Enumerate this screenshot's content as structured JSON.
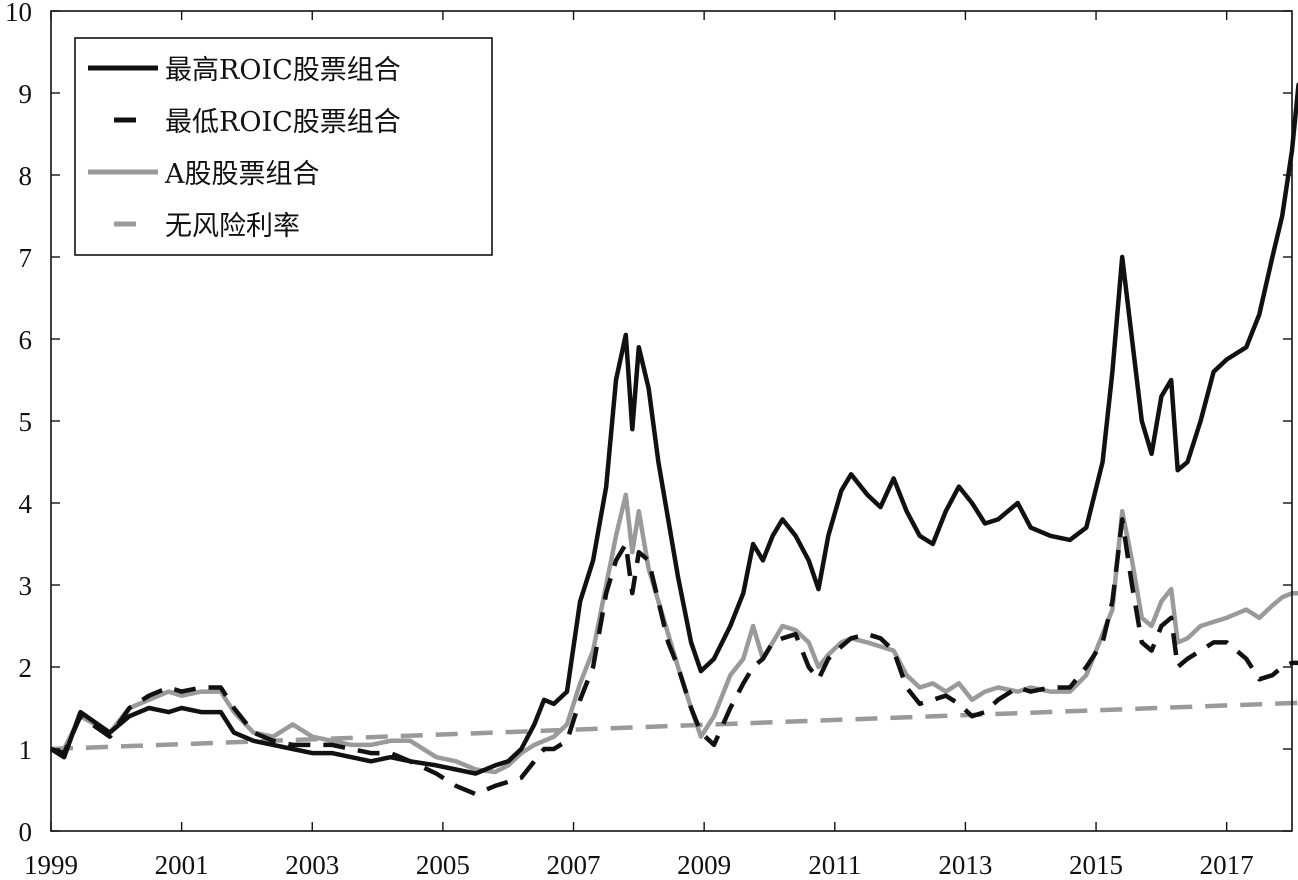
{
  "chart_data": {
    "type": "line",
    "title": "",
    "xlabel": "",
    "ylabel": "",
    "xlim": [
      1999.0,
      2018.0
    ],
    "ylim": [
      0,
      10
    ],
    "x_ticks": [
      1999,
      2001,
      2003,
      2005,
      2007,
      2009,
      2011,
      2013,
      2015,
      2017
    ],
    "y_ticks": [
      0,
      1,
      2,
      3,
      4,
      5,
      6,
      7,
      8,
      9,
      10
    ],
    "grid": false,
    "legend_position": "top-left",
    "series": [
      {
        "name": "最高ROIC股票组合",
        "color": "#111111",
        "style": "solid",
        "points": [
          [
            1999.0,
            1.0
          ],
          [
            1999.2,
            0.9
          ],
          [
            1999.45,
            1.45
          ],
          [
            1999.9,
            1.2
          ],
          [
            2000.2,
            1.4
          ],
          [
            2000.5,
            1.5
          ],
          [
            2000.8,
            1.45
          ],
          [
            2001.0,
            1.5
          ],
          [
            2001.3,
            1.45
          ],
          [
            2001.6,
            1.45
          ],
          [
            2001.8,
            1.2
          ],
          [
            2002.1,
            1.1
          ],
          [
            2002.4,
            1.05
          ],
          [
            2002.7,
            1.0
          ],
          [
            2003.0,
            0.95
          ],
          [
            2003.3,
            0.95
          ],
          [
            2003.6,
            0.9
          ],
          [
            2003.9,
            0.85
          ],
          [
            2004.2,
            0.9
          ],
          [
            2004.5,
            0.85
          ],
          [
            2004.9,
            0.8
          ],
          [
            2005.2,
            0.75
          ],
          [
            2005.5,
            0.7
          ],
          [
            2005.8,
            0.8
          ],
          [
            2006.0,
            0.85
          ],
          [
            2006.2,
            1.0
          ],
          [
            2006.4,
            1.3
          ],
          [
            2006.55,
            1.6
          ],
          [
            2006.7,
            1.55
          ],
          [
            2006.9,
            1.7
          ],
          [
            2007.1,
            2.8
          ],
          [
            2007.3,
            3.3
          ],
          [
            2007.5,
            4.2
          ],
          [
            2007.65,
            5.5
          ],
          [
            2007.8,
            6.05
          ],
          [
            2007.9,
            4.9
          ],
          [
            2008.0,
            5.9
          ],
          [
            2008.15,
            5.4
          ],
          [
            2008.3,
            4.5
          ],
          [
            2008.45,
            3.8
          ],
          [
            2008.6,
            3.1
          ],
          [
            2008.8,
            2.3
          ],
          [
            2008.95,
            1.95
          ],
          [
            2009.15,
            2.1
          ],
          [
            2009.4,
            2.5
          ],
          [
            2009.6,
            2.9
          ],
          [
            2009.75,
            3.5
          ],
          [
            2009.9,
            3.3
          ],
          [
            2010.05,
            3.6
          ],
          [
            2010.2,
            3.8
          ],
          [
            2010.4,
            3.6
          ],
          [
            2010.6,
            3.3
          ],
          [
            2010.75,
            2.95
          ],
          [
            2010.9,
            3.6
          ],
          [
            2011.1,
            4.15
          ],
          [
            2011.25,
            4.35
          ],
          [
            2011.5,
            4.1
          ],
          [
            2011.7,
            3.95
          ],
          [
            2011.9,
            4.3
          ],
          [
            2012.1,
            3.9
          ],
          [
            2012.3,
            3.6
          ],
          [
            2012.5,
            3.5
          ],
          [
            2012.7,
            3.9
          ],
          [
            2012.9,
            4.2
          ],
          [
            2013.1,
            4.0
          ],
          [
            2013.3,
            3.75
          ],
          [
            2013.5,
            3.8
          ],
          [
            2013.8,
            4.0
          ],
          [
            2014.0,
            3.7
          ],
          [
            2014.3,
            3.6
          ],
          [
            2014.6,
            3.55
          ],
          [
            2014.85,
            3.7
          ],
          [
            2015.1,
            4.5
          ],
          [
            2015.25,
            5.6
          ],
          [
            2015.4,
            7.0
          ],
          [
            2015.55,
            6.0
          ],
          [
            2015.7,
            5.0
          ],
          [
            2015.85,
            4.6
          ],
          [
            2016.0,
            5.3
          ],
          [
            2016.15,
            5.5
          ],
          [
            2016.25,
            4.4
          ],
          [
            2016.4,
            4.5
          ],
          [
            2016.6,
            5.0
          ],
          [
            2016.8,
            5.6
          ],
          [
            2017.0,
            5.75
          ],
          [
            2017.3,
            5.9
          ],
          [
            2017.5,
            6.3
          ],
          [
            2017.7,
            7.0
          ],
          [
            2017.85,
            7.5
          ],
          [
            2018.0,
            8.3
          ],
          [
            2018.1,
            9.1
          ],
          [
            2018.2,
            9.0
          ],
          [
            2018.3,
            9.85
          ]
        ]
      },
      {
        "name": "最低ROIC股票组合",
        "color": "#111111",
        "style": "dashed",
        "points": [
          [
            1999.0,
            1.0
          ],
          [
            1999.2,
            0.95
          ],
          [
            1999.45,
            1.4
          ],
          [
            1999.9,
            1.15
          ],
          [
            2000.2,
            1.5
          ],
          [
            2000.5,
            1.65
          ],
          [
            2000.8,
            1.75
          ],
          [
            2001.0,
            1.7
          ],
          [
            2001.3,
            1.75
          ],
          [
            2001.6,
            1.75
          ],
          [
            2001.8,
            1.5
          ],
          [
            2002.1,
            1.2
          ],
          [
            2002.4,
            1.1
          ],
          [
            2002.7,
            1.05
          ],
          [
            2003.0,
            1.05
          ],
          [
            2003.3,
            1.05
          ],
          [
            2003.6,
            1.0
          ],
          [
            2003.9,
            0.95
          ],
          [
            2004.2,
            0.95
          ],
          [
            2004.5,
            0.85
          ],
          [
            2004.9,
            0.7
          ],
          [
            2005.2,
            0.55
          ],
          [
            2005.5,
            0.45
          ],
          [
            2005.8,
            0.55
          ],
          [
            2006.0,
            0.6
          ],
          [
            2006.2,
            0.65
          ],
          [
            2006.4,
            0.85
          ],
          [
            2006.55,
            1.0
          ],
          [
            2006.7,
            1.0
          ],
          [
            2006.9,
            1.1
          ],
          [
            2007.1,
            1.6
          ],
          [
            2007.3,
            2.0
          ],
          [
            2007.5,
            2.9
          ],
          [
            2007.65,
            3.3
          ],
          [
            2007.8,
            3.5
          ],
          [
            2007.9,
            2.9
          ],
          [
            2008.0,
            3.4
          ],
          [
            2008.15,
            3.3
          ],
          [
            2008.3,
            2.8
          ],
          [
            2008.45,
            2.3
          ],
          [
            2008.6,
            2.0
          ],
          [
            2008.8,
            1.5
          ],
          [
            2008.95,
            1.2
          ],
          [
            2009.15,
            1.05
          ],
          [
            2009.4,
            1.5
          ],
          [
            2009.6,
            1.8
          ],
          [
            2009.75,
            2.0
          ],
          [
            2009.9,
            2.1
          ],
          [
            2010.05,
            2.3
          ],
          [
            2010.2,
            2.35
          ],
          [
            2010.4,
            2.4
          ],
          [
            2010.6,
            2.0
          ],
          [
            2010.75,
            1.85
          ],
          [
            2010.9,
            2.1
          ],
          [
            2011.1,
            2.25
          ],
          [
            2011.25,
            2.35
          ],
          [
            2011.5,
            2.4
          ],
          [
            2011.7,
            2.35
          ],
          [
            2011.9,
            2.2
          ],
          [
            2012.1,
            1.75
          ],
          [
            2012.3,
            1.55
          ],
          [
            2012.5,
            1.6
          ],
          [
            2012.7,
            1.65
          ],
          [
            2012.9,
            1.55
          ],
          [
            2013.1,
            1.4
          ],
          [
            2013.3,
            1.45
          ],
          [
            2013.5,
            1.6
          ],
          [
            2013.8,
            1.75
          ],
          [
            2014.0,
            1.7
          ],
          [
            2014.3,
            1.75
          ],
          [
            2014.6,
            1.75
          ],
          [
            2014.85,
            2.0
          ],
          [
            2015.1,
            2.3
          ],
          [
            2015.25,
            2.8
          ],
          [
            2015.4,
            3.8
          ],
          [
            2015.55,
            3.0
          ],
          [
            2015.7,
            2.3
          ],
          [
            2015.85,
            2.2
          ],
          [
            2016.0,
            2.5
          ],
          [
            2016.15,
            2.6
          ],
          [
            2016.25,
            2.0
          ],
          [
            2016.4,
            2.1
          ],
          [
            2016.6,
            2.2
          ],
          [
            2016.8,
            2.3
          ],
          [
            2017.0,
            2.3
          ],
          [
            2017.3,
            2.1
          ],
          [
            2017.5,
            1.85
          ],
          [
            2017.7,
            1.9
          ],
          [
            2017.85,
            2.0
          ],
          [
            2018.0,
            2.05
          ],
          [
            2018.1,
            2.05
          ],
          [
            2018.2,
            2.05
          ],
          [
            2018.3,
            2.05
          ]
        ]
      },
      {
        "name": "A股股票组合",
        "color": "#9a9a9a",
        "style": "solid",
        "points": [
          [
            1999.0,
            1.0
          ],
          [
            1999.2,
            1.0
          ],
          [
            1999.45,
            1.4
          ],
          [
            1999.9,
            1.2
          ],
          [
            2000.2,
            1.5
          ],
          [
            2000.5,
            1.6
          ],
          [
            2000.8,
            1.7
          ],
          [
            2001.0,
            1.65
          ],
          [
            2001.3,
            1.7
          ],
          [
            2001.6,
            1.7
          ],
          [
            2001.8,
            1.45
          ],
          [
            2002.1,
            1.2
          ],
          [
            2002.4,
            1.15
          ],
          [
            2002.7,
            1.3
          ],
          [
            2003.0,
            1.15
          ],
          [
            2003.3,
            1.1
          ],
          [
            2003.6,
            1.05
          ],
          [
            2003.9,
            1.05
          ],
          [
            2004.2,
            1.1
          ],
          [
            2004.5,
            1.1
          ],
          [
            2004.9,
            0.9
          ],
          [
            2005.2,
            0.85
          ],
          [
            2005.5,
            0.75
          ],
          [
            2005.8,
            0.72
          ],
          [
            2006.0,
            0.8
          ],
          [
            2006.2,
            0.95
          ],
          [
            2006.4,
            1.05
          ],
          [
            2006.55,
            1.1
          ],
          [
            2006.7,
            1.15
          ],
          [
            2006.9,
            1.3
          ],
          [
            2007.1,
            1.8
          ],
          [
            2007.3,
            2.2
          ],
          [
            2007.5,
            3.0
          ],
          [
            2007.65,
            3.6
          ],
          [
            2007.8,
            4.1
          ],
          [
            2007.9,
            3.4
          ],
          [
            2008.0,
            3.9
          ],
          [
            2008.15,
            3.2
          ],
          [
            2008.3,
            2.8
          ],
          [
            2008.45,
            2.4
          ],
          [
            2008.6,
            2.0
          ],
          [
            2008.8,
            1.5
          ],
          [
            2008.95,
            1.15
          ],
          [
            2009.15,
            1.4
          ],
          [
            2009.4,
            1.9
          ],
          [
            2009.6,
            2.1
          ],
          [
            2009.75,
            2.5
          ],
          [
            2009.9,
            2.1
          ],
          [
            2010.05,
            2.3
          ],
          [
            2010.2,
            2.5
          ],
          [
            2010.4,
            2.45
          ],
          [
            2010.6,
            2.3
          ],
          [
            2010.75,
            2.0
          ],
          [
            2010.9,
            2.15
          ],
          [
            2011.1,
            2.3
          ],
          [
            2011.25,
            2.35
          ],
          [
            2011.5,
            2.3
          ],
          [
            2011.7,
            2.25
          ],
          [
            2011.9,
            2.2
          ],
          [
            2012.1,
            1.9
          ],
          [
            2012.3,
            1.75
          ],
          [
            2012.5,
            1.8
          ],
          [
            2012.7,
            1.7
          ],
          [
            2012.9,
            1.8
          ],
          [
            2013.1,
            1.6
          ],
          [
            2013.3,
            1.7
          ],
          [
            2013.5,
            1.75
          ],
          [
            2013.8,
            1.7
          ],
          [
            2014.0,
            1.75
          ],
          [
            2014.3,
            1.7
          ],
          [
            2014.6,
            1.7
          ],
          [
            2014.85,
            1.9
          ],
          [
            2015.1,
            2.4
          ],
          [
            2015.25,
            2.7
          ],
          [
            2015.4,
            3.9
          ],
          [
            2015.55,
            3.3
          ],
          [
            2015.7,
            2.6
          ],
          [
            2015.85,
            2.5
          ],
          [
            2016.0,
            2.8
          ],
          [
            2016.15,
            2.95
          ],
          [
            2016.25,
            2.3
          ],
          [
            2016.4,
            2.35
          ],
          [
            2016.6,
            2.5
          ],
          [
            2016.8,
            2.55
          ],
          [
            2017.0,
            2.6
          ],
          [
            2017.3,
            2.7
          ],
          [
            2017.5,
            2.6
          ],
          [
            2017.7,
            2.75
          ],
          [
            2017.85,
            2.85
          ],
          [
            2018.0,
            2.9
          ],
          [
            2018.1,
            2.9
          ],
          [
            2018.2,
            2.9
          ],
          [
            2018.3,
            2.9
          ]
        ]
      },
      {
        "name": "无风险利率",
        "color": "#9a9a9a",
        "style": "dashed",
        "points": [
          [
            1999.0,
            1.0
          ],
          [
            2018.3,
            1.57
          ]
        ]
      }
    ]
  }
}
